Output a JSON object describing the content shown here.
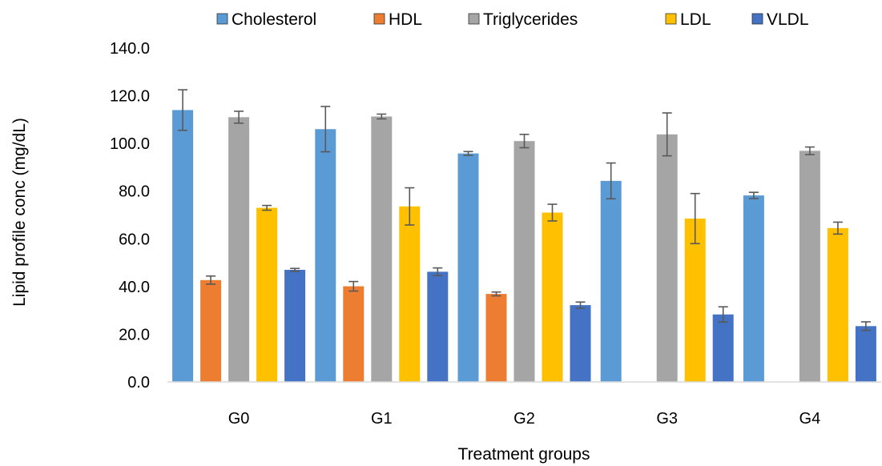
{
  "chart_data": {
    "type": "bar",
    "title": "",
    "xlabel": "Treatment groups",
    "ylabel": "Lipid profile conc (mg/dL)",
    "ylim": [
      0,
      140
    ],
    "yticks": [
      "0.0",
      "20.0",
      "40.0",
      "60.0",
      "80.0",
      "100.0",
      "120.0",
      "140.0"
    ],
    "grid": false,
    "legend": "top",
    "categories": [
      "G0",
      "G1",
      "G2",
      "G3",
      "G4"
    ],
    "series": [
      {
        "name": "Cholesterol",
        "color": "#5B9BD5",
        "values": [
          114.0,
          106.0,
          95.8,
          84.3,
          78.2
        ],
        "errors": [
          8.5,
          9.5,
          0.8,
          7.5,
          1.3
        ]
      },
      {
        "name": "HDL",
        "color": "#ED7D31",
        "values": [
          42.7,
          40.1,
          36.9,
          null,
          null
        ],
        "errors": [
          1.7,
          2.0,
          0.8,
          null,
          null
        ]
      },
      {
        "name": "Triglycerides",
        "color": "#A5A5A5",
        "values": [
          111.0,
          111.3,
          101.0,
          103.8,
          96.9
        ],
        "errors": [
          2.5,
          1.0,
          2.8,
          9.0,
          1.6
        ]
      },
      {
        "name": "LDL",
        "color": "#FFC000",
        "values": [
          73.0,
          73.6,
          71.0,
          68.5,
          64.5
        ],
        "errors": [
          1.0,
          7.8,
          3.5,
          10.5,
          2.5
        ]
      },
      {
        "name": "VLDL",
        "color": "#4472C4",
        "values": [
          47.0,
          46.2,
          32.2,
          28.3,
          23.4
        ],
        "errors": [
          0.6,
          1.6,
          1.3,
          3.2,
          1.8
        ]
      }
    ]
  }
}
